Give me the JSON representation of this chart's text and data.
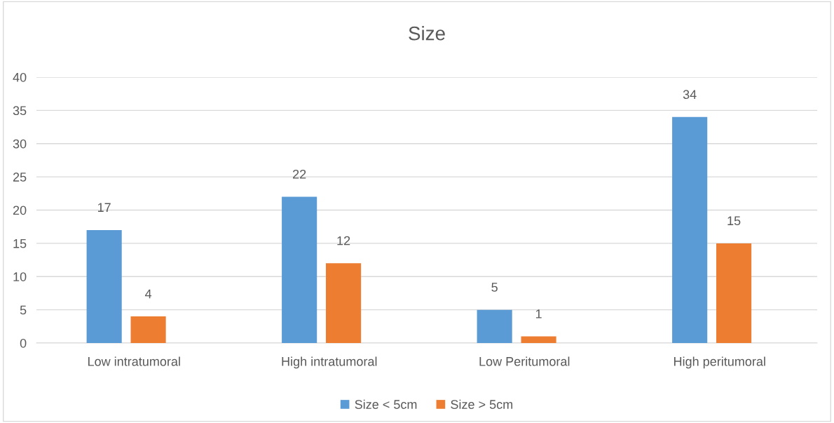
{
  "chart_data": {
    "type": "bar",
    "title": "Size",
    "categories": [
      "Low intratumoral",
      "High intratumoral",
      "Low Peritumoral",
      "High peritumoral"
    ],
    "series": [
      {
        "name": "Size < 5cm",
        "color": "#5b9bd5",
        "values": [
          17,
          22,
          5,
          34
        ]
      },
      {
        "name": "Size > 5cm",
        "color": "#ed7d31",
        "values": [
          4,
          12,
          1,
          15
        ]
      }
    ],
    "ylim": [
      0,
      40
    ],
    "yticks": [
      0,
      5,
      10,
      15,
      20,
      25,
      30,
      35,
      40
    ],
    "grid": "y",
    "legend": "bottom",
    "data_labels": true
  }
}
